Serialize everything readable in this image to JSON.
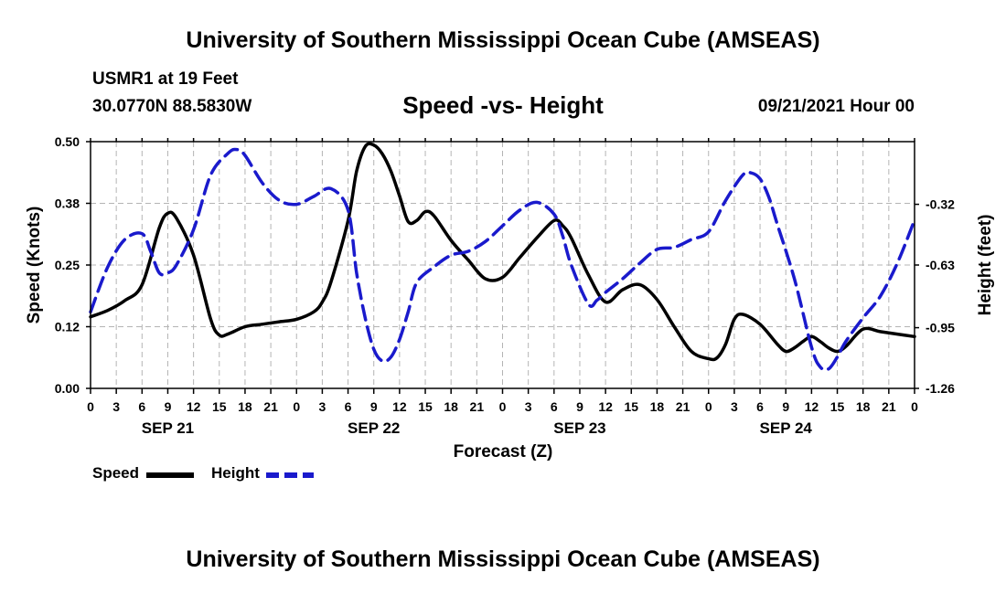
{
  "header": {
    "title": "University of Southern Mississippi Ocean Cube (AMSEAS)",
    "station": "USMR1 at 19 Feet",
    "coords": "30.0770N  88.5830W",
    "chart_title": "Speed -vs- Height",
    "datetime": "09/21/2021 Hour 00"
  },
  "footer": {
    "title": "University of Southern Mississippi Ocean Cube (AMSEAS)"
  },
  "colors": {
    "speed": "#000000",
    "height": "#1a1acc",
    "grid": "#b4b4b4"
  },
  "legend": {
    "speed_label": "Speed",
    "height_label": "Height"
  },
  "chart_data": {
    "type": "line",
    "title": "Speed -vs- Height",
    "xlabel": "Forecast (Z)",
    "ylabel": "Speed (Knots)",
    "y2label": "Height (feet)",
    "xlim": [
      0,
      96
    ],
    "ylim": [
      0,
      0.5
    ],
    "y2lim": [
      -1.26,
      0.0
    ],
    "yticks": [
      {
        "value": 0.0,
        "label": "0.00"
      },
      {
        "value": 0.125,
        "label": "0.12"
      },
      {
        "value": 0.25,
        "label": "0.25"
      },
      {
        "value": 0.375,
        "label": "0.38"
      },
      {
        "value": 0.5,
        "label": "0.50"
      }
    ],
    "y2ticks": [
      {
        "value": -1.26,
        "label": "-1.26"
      },
      {
        "value": -0.95,
        "label": "-0.95"
      },
      {
        "value": -0.63,
        "label": "-0.63"
      },
      {
        "value": -0.32,
        "label": "-0.32"
      }
    ],
    "xticks": [
      {
        "x": 0,
        "label": "0"
      },
      {
        "x": 3,
        "label": "3"
      },
      {
        "x": 6,
        "label": "6"
      },
      {
        "x": 9,
        "label": "9"
      },
      {
        "x": 12,
        "label": "12"
      },
      {
        "x": 15,
        "label": "15"
      },
      {
        "x": 18,
        "label": "18"
      },
      {
        "x": 21,
        "label": "21"
      },
      {
        "x": 24,
        "label": "0"
      },
      {
        "x": 27,
        "label": "3"
      },
      {
        "x": 30,
        "label": "6"
      },
      {
        "x": 33,
        "label": "9"
      },
      {
        "x": 36,
        "label": "12"
      },
      {
        "x": 39,
        "label": "15"
      },
      {
        "x": 42,
        "label": "18"
      },
      {
        "x": 45,
        "label": "21"
      },
      {
        "x": 48,
        "label": "0"
      },
      {
        "x": 51,
        "label": "3"
      },
      {
        "x": 54,
        "label": "6"
      },
      {
        "x": 57,
        "label": "9"
      },
      {
        "x": 60,
        "label": "12"
      },
      {
        "x": 63,
        "label": "15"
      },
      {
        "x": 66,
        "label": "18"
      },
      {
        "x": 69,
        "label": "21"
      },
      {
        "x": 72,
        "label": "0"
      },
      {
        "x": 75,
        "label": "3"
      },
      {
        "x": 78,
        "label": "6"
      },
      {
        "x": 81,
        "label": "9"
      },
      {
        "x": 84,
        "label": "12"
      },
      {
        "x": 87,
        "label": "15"
      },
      {
        "x": 90,
        "label": "18"
      },
      {
        "x": 93,
        "label": "21"
      },
      {
        "x": 96,
        "label": "0"
      }
    ],
    "day_labels": [
      {
        "x": 9,
        "label": "SEP 21"
      },
      {
        "x": 33,
        "label": "SEP 22"
      },
      {
        "x": 57,
        "label": "SEP 23"
      },
      {
        "x": 81,
        "label": "SEP 24"
      }
    ],
    "grid": true,
    "series": [
      {
        "name": "Speed",
        "axis": "left",
        "x": [
          0,
          2,
          4,
          6,
          8,
          9,
          10,
          12,
          14,
          15,
          16,
          18,
          20,
          22,
          24,
          26,
          27,
          28,
          30,
          31,
          32,
          33,
          34,
          35,
          36,
          37,
          38,
          39,
          40,
          42,
          44,
          46,
          48,
          50,
          52,
          54,
          55,
          56,
          58,
          60,
          62,
          64,
          66,
          68,
          70,
          72,
          73,
          74,
          75,
          76,
          78,
          80,
          81,
          82,
          83,
          84,
          85,
          86,
          87,
          88,
          90,
          92,
          94,
          96
        ],
        "values": [
          0.145,
          0.158,
          0.178,
          0.21,
          0.325,
          0.355,
          0.345,
          0.27,
          0.14,
          0.108,
          0.11,
          0.125,
          0.13,
          0.135,
          0.14,
          0.155,
          0.175,
          0.215,
          0.34,
          0.44,
          0.49,
          0.493,
          0.475,
          0.44,
          0.39,
          0.338,
          0.34,
          0.358,
          0.35,
          0.3,
          0.26,
          0.222,
          0.225,
          0.265,
          0.305,
          0.34,
          0.33,
          0.305,
          0.23,
          0.175,
          0.2,
          0.21,
          0.18,
          0.125,
          0.075,
          0.06,
          0.062,
          0.09,
          0.14,
          0.15,
          0.13,
          0.09,
          0.075,
          0.082,
          0.095,
          0.105,
          0.095,
          0.082,
          0.075,
          0.085,
          0.12,
          0.115,
          0.11,
          0.105
        ]
      },
      {
        "name": "Height",
        "axis": "right",
        "x": [
          0,
          2,
          4,
          6,
          7,
          8,
          9,
          10,
          12,
          14,
          16,
          17,
          18,
          20,
          22,
          24,
          26,
          28,
          30,
          31,
          32,
          33,
          34,
          35,
          36,
          37,
          38,
          40,
          42,
          44,
          46,
          48,
          50,
          52,
          54,
          55,
          56,
          58,
          59,
          60,
          62,
          64,
          66,
          68,
          70,
          72,
          74,
          76,
          77,
          78,
          79,
          80,
          82,
          84,
          85,
          86,
          87,
          88,
          90,
          92,
          94,
          96
        ],
        "values": [
          -0.87,
          -0.64,
          -0.5,
          -0.47,
          -0.56,
          -0.67,
          -0.67,
          -0.63,
          -0.45,
          -0.17,
          -0.06,
          -0.04,
          -0.07,
          -0.21,
          -0.3,
          -0.32,
          -0.28,
          -0.24,
          -0.35,
          -0.67,
          -0.9,
          -1.06,
          -1.12,
          -1.1,
          -1.01,
          -0.87,
          -0.72,
          -0.64,
          -0.58,
          -0.56,
          -0.51,
          -0.43,
          -0.35,
          -0.31,
          -0.37,
          -0.48,
          -0.63,
          -0.83,
          -0.81,
          -0.77,
          -0.7,
          -0.62,
          -0.55,
          -0.54,
          -0.5,
          -0.46,
          -0.3,
          -0.17,
          -0.16,
          -0.19,
          -0.28,
          -0.42,
          -0.7,
          -1.05,
          -1.15,
          -1.16,
          -1.1,
          -1.02,
          -0.9,
          -0.79,
          -0.62,
          -0.4
        ]
      }
    ]
  }
}
